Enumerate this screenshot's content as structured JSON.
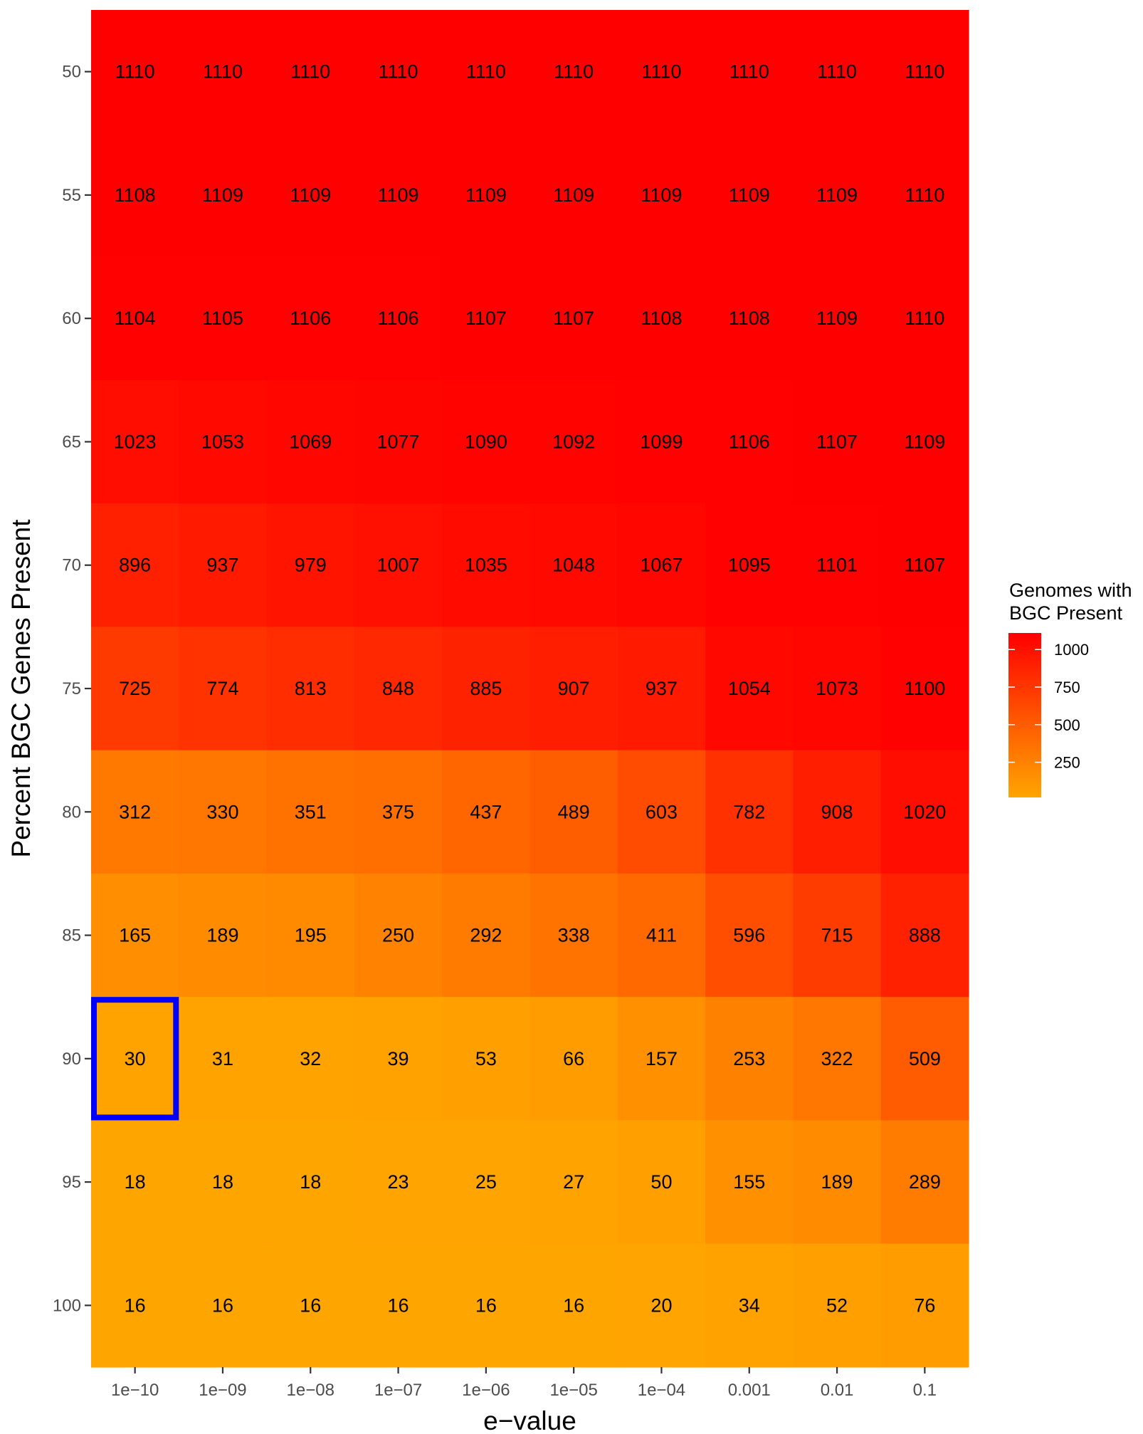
{
  "chart_data": {
    "type": "heatmap",
    "title": "",
    "xlabel": "e−value",
    "ylabel": "Percent BGC Genes Present",
    "x_categories": [
      "1e−10",
      "1e−09",
      "1e−08",
      "1e−07",
      "1e−06",
      "1e−05",
      "1e−04",
      "0.001",
      "0.01",
      "0.1"
    ],
    "y_categories": [
      "50",
      "55",
      "60",
      "65",
      "70",
      "75",
      "80",
      "85",
      "90",
      "95",
      "100"
    ],
    "values": [
      [
        1110,
        1110,
        1110,
        1110,
        1110,
        1110,
        1110,
        1110,
        1110,
        1110
      ],
      [
        1108,
        1109,
        1109,
        1109,
        1109,
        1109,
        1109,
        1109,
        1109,
        1110
      ],
      [
        1104,
        1105,
        1106,
        1106,
        1107,
        1107,
        1108,
        1108,
        1109,
        1110
      ],
      [
        1023,
        1053,
        1069,
        1077,
        1090,
        1092,
        1099,
        1106,
        1107,
        1109
      ],
      [
        896,
        937,
        979,
        1007,
        1035,
        1048,
        1067,
        1095,
        1101,
        1107
      ],
      [
        725,
        774,
        813,
        848,
        885,
        907,
        937,
        1054,
        1073,
        1100
      ],
      [
        312,
        330,
        351,
        375,
        437,
        489,
        603,
        782,
        908,
        1020
      ],
      [
        165,
        189,
        195,
        250,
        292,
        338,
        411,
        596,
        715,
        888
      ],
      [
        30,
        31,
        32,
        39,
        53,
        66,
        157,
        253,
        322,
        509
      ],
      [
        18,
        18,
        18,
        23,
        25,
        27,
        50,
        155,
        189,
        289
      ],
      [
        16,
        16,
        16,
        16,
        16,
        16,
        20,
        34,
        52,
        76
      ]
    ],
    "color_scale": {
      "low": "#FFA500",
      "high": "#FF0000",
      "min": 16,
      "max": 1110
    },
    "legend": {
      "title_lines": [
        "Genomes with",
        "BGC Present"
      ],
      "breaks": [
        250,
        500,
        750,
        1000
      ],
      "labels": [
        "250",
        "500",
        "750",
        "1000"
      ],
      "placement": "right"
    },
    "highlight": {
      "x": "1e−10",
      "y": "90",
      "color": "#0000FF"
    },
    "grid": false
  }
}
